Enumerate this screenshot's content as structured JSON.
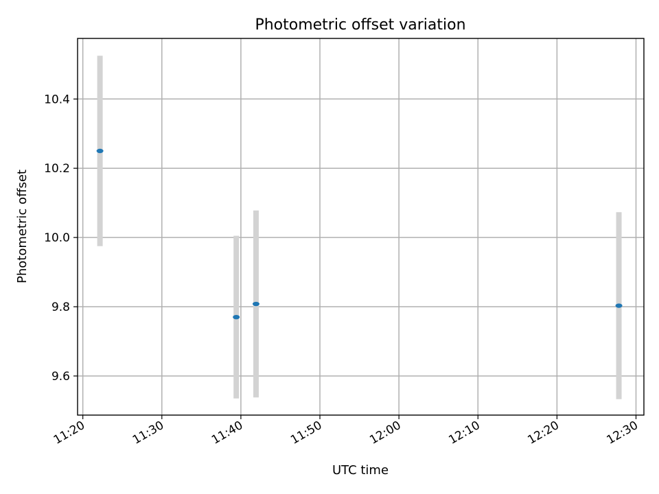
{
  "chart_data": {
    "type": "scatter",
    "title": "Photometric offset variation",
    "xlabel": "UTC time",
    "ylabel": "Photometric offset",
    "x_axis_type": "time",
    "xlim": [
      "11:19:20",
      "12:31:00"
    ],
    "ylim": [
      9.487,
      10.575
    ],
    "xticks": [
      "11:20",
      "11:30",
      "11:40",
      "11:50",
      "12:00",
      "12:10",
      "12:20",
      "12:30"
    ],
    "yticks": [
      9.6,
      9.8,
      10.0,
      10.2,
      10.4
    ],
    "ytick_labels": [
      "9.6",
      "9.8",
      "10.0",
      "10.2",
      "10.4"
    ],
    "grid": true,
    "legend": "none",
    "colors": {
      "marker": "#1f77b4",
      "errorbar": "#d3d3d3",
      "grid": "#b0b0b0"
    },
    "points": [
      {
        "x": "11:22:10",
        "y": 10.25,
        "yerr": 0.275
      },
      {
        "x": "11:39:25",
        "y": 9.77,
        "yerr": 0.235
      },
      {
        "x": "11:41:55",
        "y": 9.808,
        "yerr": 0.27
      },
      {
        "x": "12:27:50",
        "y": 9.803,
        "yerr": 0.27
      }
    ]
  }
}
